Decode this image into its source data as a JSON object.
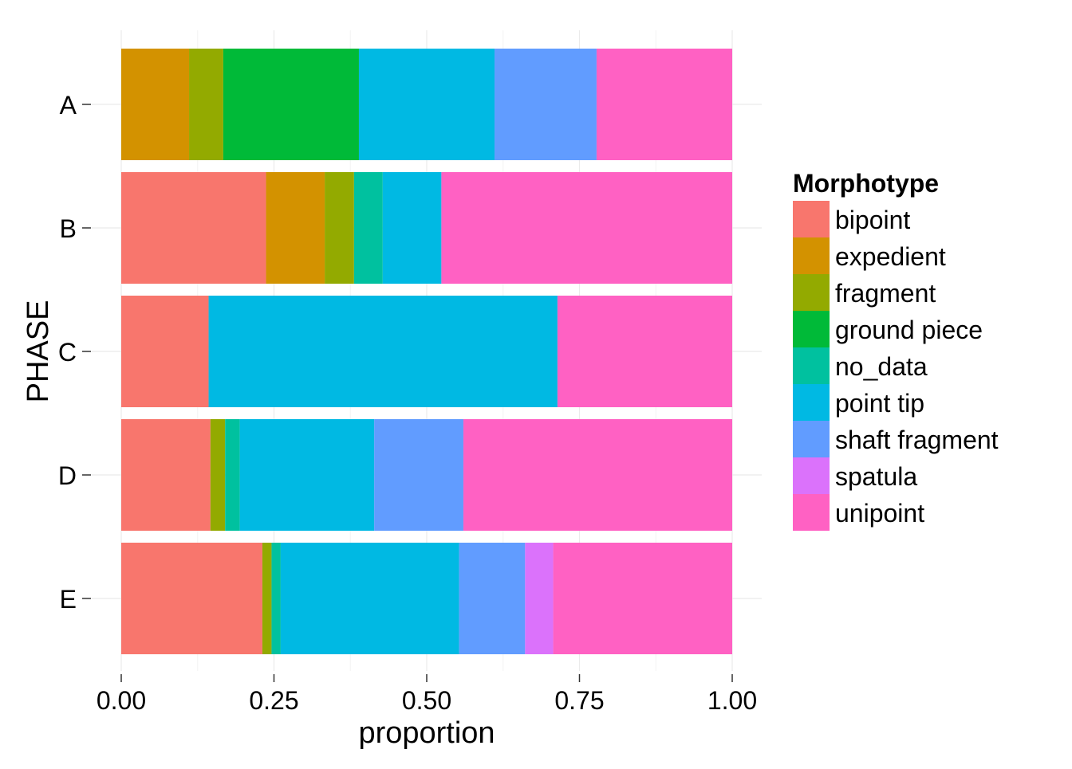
{
  "chart_data": {
    "type": "bar",
    "orientation": "horizontal",
    "stacked": "proportion",
    "categories": [
      "A",
      "B",
      "C",
      "D",
      "E"
    ],
    "xlabel": "proportion",
    "ylabel": "PHASE",
    "xlim": [
      0,
      1
    ],
    "x_ticks": [
      "0.00",
      "0.25",
      "0.50",
      "0.75",
      "1.00"
    ],
    "grid": true,
    "legend": {
      "title": "Morphotype",
      "position": "right"
    },
    "series": [
      {
        "name": "bipoint",
        "color": "#F8766D",
        "values": [
          0.0,
          0.237,
          0.143,
          0.146,
          0.231
        ]
      },
      {
        "name": "expedient",
        "color": "#D39200",
        "values": [
          0.111,
          0.096,
          0.0,
          0.0,
          0.0
        ]
      },
      {
        "name": "fragment",
        "color": "#93AA00",
        "values": [
          0.056,
          0.048,
          0.0,
          0.024,
          0.015
        ]
      },
      {
        "name": "ground piece",
        "color": "#00BA38",
        "values": [
          0.222,
          0.0,
          0.0,
          0.0,
          0.0
        ]
      },
      {
        "name": "no_data",
        "color": "#00C19F",
        "values": [
          0.0,
          0.047,
          0.0,
          0.024,
          0.015
        ]
      },
      {
        "name": "point tip",
        "color": "#00B9E3",
        "values": [
          0.222,
          0.096,
          0.571,
          0.22,
          0.292
        ]
      },
      {
        "name": "shaft fragment",
        "color": "#619CFF",
        "values": [
          0.167,
          0.0,
          0.0,
          0.146,
          0.108
        ]
      },
      {
        "name": "spatula",
        "color": "#DB72FB",
        "values": [
          0.0,
          0.0,
          0.0,
          0.0,
          0.046
        ]
      },
      {
        "name": "unipoint",
        "color": "#FF61C3",
        "values": [
          0.222,
          0.476,
          0.286,
          0.44,
          0.293
        ]
      }
    ]
  }
}
